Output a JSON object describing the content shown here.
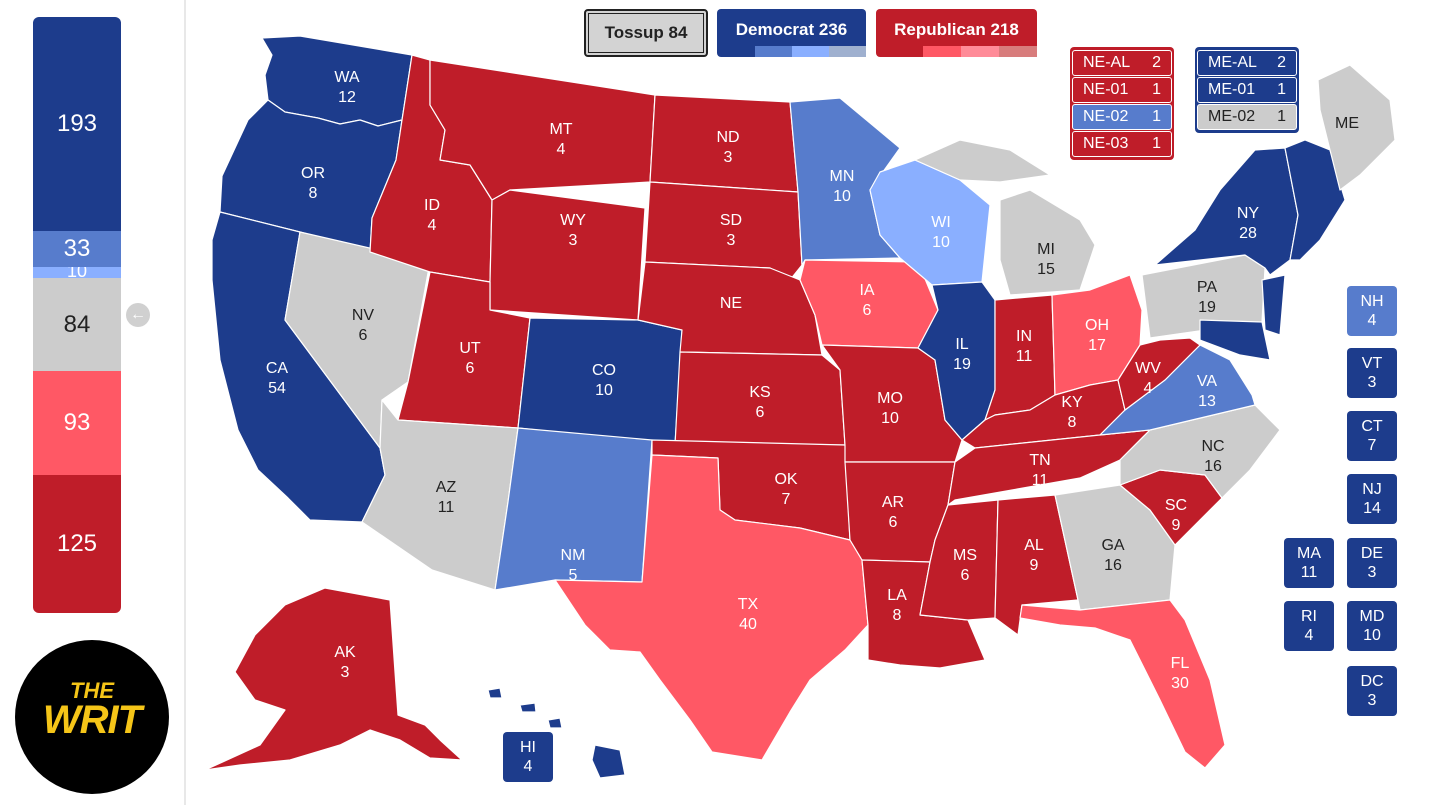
{
  "colors": {
    "solid_dem": "#1d3c8c",
    "likely_dem": "#577ccc",
    "lean_dem": "#8aafff",
    "tossup": "#cccccc",
    "lean_rep": "#ff8b98",
    "likely_rep": "#ff5865",
    "solid_rep": "#bf1d29"
  },
  "summary": {
    "tossup_label": "Tossup 84",
    "democrat_label": "Democrat 236",
    "republican_label": "Republican 218"
  },
  "sidebar": {
    "total_seats": 538,
    "segments": [
      {
        "label": "193",
        "value": 193,
        "color": "#1d3c8c"
      },
      {
        "label": "33",
        "value": 33,
        "color": "#577ccc"
      },
      {
        "label": "10",
        "value": 10,
        "color": "#8aafff"
      },
      {
        "label": "84",
        "value": 84,
        "color": "#cccccc"
      },
      {
        "label": "93",
        "value": 93,
        "color": "#ff5865"
      },
      {
        "label": "125",
        "value": 125,
        "color": "#bf1d29"
      }
    ]
  },
  "logo": {
    "line1": "THE",
    "line2": "WRIT"
  },
  "nebraska_splits": [
    {
      "district": "NE-AL",
      "votes": "2",
      "color": "#bf1d29"
    },
    {
      "district": "NE-01",
      "votes": "1",
      "color": "#bf1d29"
    },
    {
      "district": "NE-02",
      "votes": "1",
      "color": "#577ccc"
    },
    {
      "district": "NE-03",
      "votes": "1",
      "color": "#bf1d29"
    }
  ],
  "maine_splits": [
    {
      "district": "ME-AL",
      "votes": "2",
      "color": "#1d3c8c"
    },
    {
      "district": "ME-01",
      "votes": "1",
      "color": "#1d3c8c"
    },
    {
      "district": "ME-02",
      "votes": "1",
      "color": "#cccccc"
    }
  ],
  "small_states": [
    {
      "abbr": "NH",
      "votes": "4",
      "color": "#577ccc"
    },
    {
      "abbr": "VT",
      "votes": "3",
      "color": "#1d3c8c"
    },
    {
      "abbr": "CT",
      "votes": "7",
      "color": "#1d3c8c"
    },
    {
      "abbr": "NJ",
      "votes": "14",
      "color": "#1d3c8c"
    },
    {
      "abbr": "MA",
      "votes": "11",
      "color": "#1d3c8c"
    },
    {
      "abbr": "DE",
      "votes": "3",
      "color": "#1d3c8c"
    },
    {
      "abbr": "RI",
      "votes": "4",
      "color": "#1d3c8c"
    },
    {
      "abbr": "MD",
      "votes": "10",
      "color": "#1d3c8c"
    },
    {
      "abbr": "DC",
      "votes": "3",
      "color": "#1d3c8c"
    },
    {
      "abbr": "HI",
      "votes": "4",
      "color": "#1d3c8c"
    }
  ],
  "states": [
    {
      "abbr": "WA",
      "votes": "12",
      "color": "#1d3c8c"
    },
    {
      "abbr": "OR",
      "votes": "8",
      "color": "#1d3c8c"
    },
    {
      "abbr": "CA",
      "votes": "54",
      "color": "#1d3c8c"
    },
    {
      "abbr": "NV",
      "votes": "6",
      "color": "#cccccc"
    },
    {
      "abbr": "ID",
      "votes": "4",
      "color": "#bf1d29"
    },
    {
      "abbr": "MT",
      "votes": "4",
      "color": "#bf1d29"
    },
    {
      "abbr": "WY",
      "votes": "3",
      "color": "#bf1d29"
    },
    {
      "abbr": "UT",
      "votes": "6",
      "color": "#bf1d29"
    },
    {
      "abbr": "AZ",
      "votes": "11",
      "color": "#cccccc"
    },
    {
      "abbr": "CO",
      "votes": "10",
      "color": "#1d3c8c"
    },
    {
      "abbr": "NM",
      "votes": "5",
      "color": "#577ccc"
    },
    {
      "abbr": "ND",
      "votes": "3",
      "color": "#bf1d29"
    },
    {
      "abbr": "SD",
      "votes": "3",
      "color": "#bf1d29"
    },
    {
      "abbr": "NE",
      "votes": "",
      "color": "#bf1d29"
    },
    {
      "abbr": "KS",
      "votes": "6",
      "color": "#bf1d29"
    },
    {
      "abbr": "OK",
      "votes": "7",
      "color": "#bf1d29"
    },
    {
      "abbr": "TX",
      "votes": "40",
      "color": "#ff5865"
    },
    {
      "abbr": "MN",
      "votes": "10",
      "color": "#577ccc"
    },
    {
      "abbr": "IA",
      "votes": "6",
      "color": "#ff5865"
    },
    {
      "abbr": "MO",
      "votes": "10",
      "color": "#bf1d29"
    },
    {
      "abbr": "AR",
      "votes": "6",
      "color": "#bf1d29"
    },
    {
      "abbr": "LA",
      "votes": "8",
      "color": "#bf1d29"
    },
    {
      "abbr": "WI",
      "votes": "10",
      "color": "#8aafff"
    },
    {
      "abbr": "IL",
      "votes": "19",
      "color": "#1d3c8c"
    },
    {
      "abbr": "MI",
      "votes": "15",
      "color": "#cccccc"
    },
    {
      "abbr": "IN",
      "votes": "11",
      "color": "#bf1d29"
    },
    {
      "abbr": "OH",
      "votes": "17",
      "color": "#ff5865"
    },
    {
      "abbr": "KY",
      "votes": "8",
      "color": "#bf1d29"
    },
    {
      "abbr": "TN",
      "votes": "11",
      "color": "#bf1d29"
    },
    {
      "abbr": "MS",
      "votes": "6",
      "color": "#bf1d29"
    },
    {
      "abbr": "AL",
      "votes": "9",
      "color": "#bf1d29"
    },
    {
      "abbr": "GA",
      "votes": "16",
      "color": "#cccccc"
    },
    {
      "abbr": "FL",
      "votes": "30",
      "color": "#ff5865"
    },
    {
      "abbr": "SC",
      "votes": "9",
      "color": "#bf1d29"
    },
    {
      "abbr": "NC",
      "votes": "16",
      "color": "#cccccc"
    },
    {
      "abbr": "VA",
      "votes": "13",
      "color": "#577ccc"
    },
    {
      "abbr": "WV",
      "votes": "4",
      "color": "#bf1d29"
    },
    {
      "abbr": "PA",
      "votes": "19",
      "color": "#cccccc"
    },
    {
      "abbr": "NY",
      "votes": "28",
      "color": "#1d3c8c"
    },
    {
      "abbr": "ME",
      "votes": "",
      "color": "#cccccc"
    },
    {
      "abbr": "AK",
      "votes": "3",
      "color": "#bf1d29"
    }
  ]
}
